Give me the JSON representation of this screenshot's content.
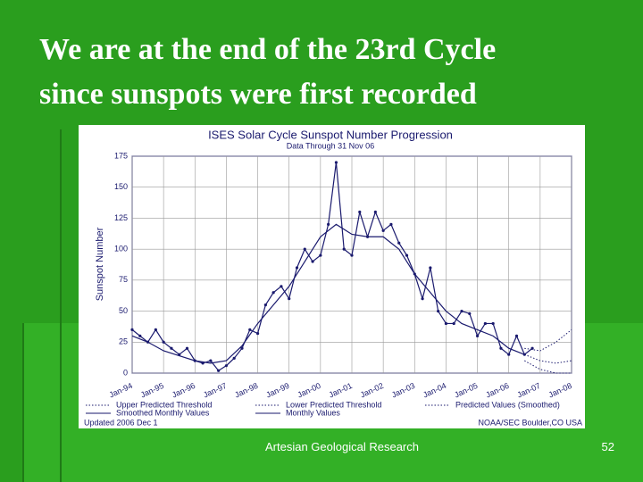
{
  "slide": {
    "title_lines": [
      "We are at the end of the 23rd Cycle",
      "since sunspots were first recorded"
    ],
    "footer": "Artesian Geological Research",
    "page_number": "52"
  },
  "chart_data": {
    "type": "line",
    "title": "ISES Solar Cycle Sunspot Number Progression",
    "subtitle": "Data Through 31 Nov 06",
    "y_label": "Sunspot Number",
    "note_left": "Updated 2006 Dec 1",
    "note_right": "NOAA/SEC Boulder,CO USA",
    "xlim": [
      1994,
      2008
    ],
    "xticks": [
      {
        "value": 1994,
        "label": "Jan-94"
      },
      {
        "value": 1995,
        "label": "Jan-95"
      },
      {
        "value": 1996,
        "label": "Jan-96"
      },
      {
        "value": 1997,
        "label": "Jan-97"
      },
      {
        "value": 1998,
        "label": "Jan-98"
      },
      {
        "value": 1999,
        "label": "Jan-99"
      },
      {
        "value": 2000,
        "label": "Jan-00"
      },
      {
        "value": 2001,
        "label": "Jan-01"
      },
      {
        "value": 2002,
        "label": "Jan-02"
      },
      {
        "value": 2003,
        "label": "Jan-03"
      },
      {
        "value": 2004,
        "label": "Jan-04"
      },
      {
        "value": 2005,
        "label": "Jan-05"
      },
      {
        "value": 2006,
        "label": "Jan-06"
      },
      {
        "value": 2007,
        "label": "Jan-07"
      },
      {
        "value": 2008,
        "label": "Jan-08"
      }
    ],
    "ylim": [
      0,
      175
    ],
    "yticks": [
      0,
      25,
      50,
      75,
      100,
      125,
      150,
      175
    ],
    "grid": true,
    "series": [
      {
        "name": "Upper Predicted Threshold",
        "color": "#1a1a6e",
        "line_style": "dotted",
        "markers": false,
        "x": [
          2006.5,
          2007,
          2007.5,
          2008
        ],
        "values": [
          20,
          18,
          25,
          35
        ]
      },
      {
        "name": "Lower Predicted Threshold",
        "color": "#1a1a6e",
        "line_style": "dotted",
        "markers": false,
        "x": [
          2006.5,
          2007,
          2007.5,
          2008
        ],
        "values": [
          10,
          3,
          0,
          0
        ]
      },
      {
        "name": "Predicted Values (Smoothed)",
        "color": "#1a1a6e",
        "line_style": "dotted",
        "markers": false,
        "x": [
          2006.5,
          2007,
          2007.5,
          2008
        ],
        "values": [
          15,
          10,
          8,
          10
        ]
      },
      {
        "name": "Smoothed Monthly Values",
        "color": "#1a1a6e",
        "line_style": "solid",
        "markers": false,
        "x": [
          1994,
          1994.5,
          1995,
          1995.5,
          1996,
          1996.5,
          1997,
          1997.5,
          1998,
          1998.5,
          1999,
          1999.5,
          2000,
          2000.5,
          2001,
          2001.5,
          2002,
          2002.5,
          2003,
          2003.5,
          2004,
          2004.5,
          2005,
          2005.5,
          2006,
          2006.5
        ],
        "values": [
          30,
          25,
          18,
          14,
          10,
          8,
          10,
          22,
          40,
          55,
          70,
          90,
          110,
          120,
          112,
          110,
          110,
          100,
          80,
          65,
          50,
          40,
          35,
          30,
          20,
          15
        ]
      },
      {
        "name": "Monthly Values",
        "color": "#1a1a6e",
        "line_style": "solid",
        "markers": true,
        "x": [
          1994,
          1994.25,
          1994.5,
          1994.75,
          1995,
          1995.25,
          1995.5,
          1995.75,
          1996,
          1996.25,
          1996.5,
          1996.75,
          1997,
          1997.25,
          1997.5,
          1997.75,
          1998,
          1998.25,
          1998.5,
          1998.75,
          1999,
          1999.25,
          1999.5,
          1999.75,
          2000,
          2000.25,
          2000.5,
          2000.75,
          2001,
          2001.25,
          2001.5,
          2001.75,
          2002,
          2002.25,
          2002.5,
          2002.75,
          2003,
          2003.25,
          2003.5,
          2003.75,
          2004,
          2004.25,
          2004.5,
          2004.75,
          2005,
          2005.25,
          2005.5,
          2005.75,
          2006,
          2006.25,
          2006.5,
          2006.75
        ],
        "values": [
          35,
          30,
          25,
          35,
          25,
          20,
          15,
          20,
          10,
          8,
          10,
          2,
          6,
          12,
          20,
          35,
          32,
          55,
          65,
          70,
          60,
          85,
          100,
          90,
          95,
          120,
          170,
          100,
          95,
          130,
          110,
          130,
          115,
          120,
          105,
          95,
          80,
          60,
          85,
          50,
          40,
          40,
          50,
          48,
          30,
          40,
          40,
          20,
          15,
          30,
          15,
          20
        ]
      }
    ]
  }
}
